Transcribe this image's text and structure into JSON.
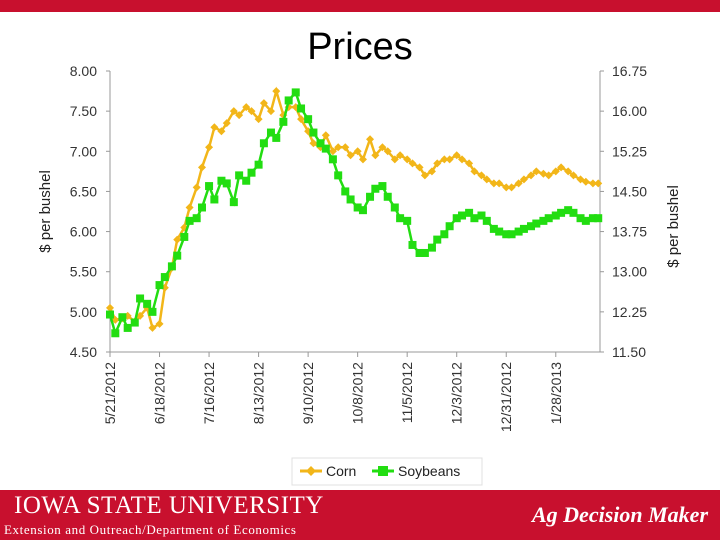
{
  "header": {
    "title": "Prices"
  },
  "footer": {
    "university": "Iowa State University",
    "subtitle": "Extension and Outreach/Department of Economics",
    "brand": "Ag Decision Maker"
  },
  "colors": {
    "corn": "#f2b619",
    "soybeans": "#22dd11",
    "brand_red": "#c8102e"
  },
  "chart_data": {
    "type": "line",
    "title": "Prices",
    "ylabel": "$ per bushel",
    "y2label": "$ per bushel",
    "ylim": [
      4.5,
      8.0
    ],
    "y2lim": [
      11.5,
      16.75
    ],
    "yticks": [
      "4.50",
      "5.00",
      "5.50",
      "6.00",
      "6.50",
      "7.00",
      "7.50",
      "8.00"
    ],
    "y2ticks": [
      "11.50",
      "12.25",
      "13.00",
      "13.75",
      "14.50",
      "15.25",
      "16.00",
      "16.75"
    ],
    "xlim": [
      "2012-05-21",
      "2013-02-22"
    ],
    "xticks": [
      "5/21/2012",
      "6/18/2012",
      "7/16/2012",
      "8/13/2012",
      "9/10/2012",
      "10/8/2012",
      "11/5/2012",
      "12/3/2012",
      "12/31/2012",
      "1/28/2013"
    ],
    "grid": false,
    "legend": "bottom",
    "series": [
      {
        "name": "Corn",
        "axis": "left",
        "x": [
          "2012-05-21",
          "2012-05-24",
          "2012-05-28",
          "2012-05-31",
          "2012-06-04",
          "2012-06-07",
          "2012-06-11",
          "2012-06-14",
          "2012-06-18",
          "2012-06-21",
          "2012-06-25",
          "2012-06-28",
          "2012-07-02",
          "2012-07-05",
          "2012-07-09",
          "2012-07-12",
          "2012-07-16",
          "2012-07-19",
          "2012-07-23",
          "2012-07-26",
          "2012-07-30",
          "2012-08-02",
          "2012-08-06",
          "2012-08-09",
          "2012-08-13",
          "2012-08-16",
          "2012-08-20",
          "2012-08-23",
          "2012-08-27",
          "2012-08-30",
          "2012-09-03",
          "2012-09-06",
          "2012-09-10",
          "2012-09-13",
          "2012-09-17",
          "2012-09-20",
          "2012-09-24",
          "2012-09-27",
          "2012-10-01",
          "2012-10-04",
          "2012-10-08",
          "2012-10-11",
          "2012-10-15",
          "2012-10-18",
          "2012-10-22",
          "2012-10-25",
          "2012-10-29",
          "2012-11-01",
          "2012-11-05",
          "2012-11-08",
          "2012-11-12",
          "2012-11-15",
          "2012-11-19",
          "2012-11-22",
          "2012-11-26",
          "2012-11-29",
          "2012-12-03",
          "2012-12-06",
          "2012-12-10",
          "2012-12-13",
          "2012-12-17",
          "2012-12-20",
          "2012-12-24",
          "2012-12-27",
          "2012-12-31",
          "2013-01-03",
          "2013-01-07",
          "2013-01-10",
          "2013-01-14",
          "2013-01-17",
          "2013-01-21",
          "2013-01-24",
          "2013-01-28",
          "2013-01-31",
          "2013-02-04",
          "2013-02-07",
          "2013-02-11",
          "2013-02-14",
          "2013-02-18",
          "2013-02-21"
        ],
        "values": [
          5.05,
          4.9,
          4.92,
          4.95,
          4.88,
          4.95,
          5.05,
          4.8,
          4.85,
          5.3,
          5.55,
          5.9,
          6.05,
          6.3,
          6.55,
          6.8,
          7.05,
          7.3,
          7.25,
          7.35,
          7.5,
          7.45,
          7.55,
          7.5,
          7.4,
          7.6,
          7.5,
          7.75,
          7.45,
          7.55,
          7.55,
          7.4,
          7.25,
          7.1,
          7.05,
          7.2,
          7.0,
          7.05,
          7.05,
          6.95,
          7.0,
          6.9,
          7.15,
          6.95,
          7.05,
          7.0,
          6.9,
          6.95,
          6.9,
          6.85,
          6.8,
          6.7,
          6.75,
          6.85,
          6.9,
          6.9,
          6.95,
          6.9,
          6.85,
          6.75,
          6.7,
          6.65,
          6.6,
          6.6,
          6.55,
          6.55,
          6.6,
          6.65,
          6.7,
          6.75,
          6.72,
          6.7,
          6.75,
          6.8,
          6.75,
          6.7,
          6.65,
          6.62,
          6.6,
          6.6
        ]
      },
      {
        "name": "Soybeans",
        "axis": "right",
        "x": [
          "2012-05-21",
          "2012-05-24",
          "2012-05-28",
          "2012-05-31",
          "2012-06-04",
          "2012-06-07",
          "2012-06-11",
          "2012-06-14",
          "2012-06-18",
          "2012-06-21",
          "2012-06-25",
          "2012-06-28",
          "2012-07-02",
          "2012-07-05",
          "2012-07-09",
          "2012-07-12",
          "2012-07-16",
          "2012-07-19",
          "2012-07-23",
          "2012-07-26",
          "2012-07-30",
          "2012-08-02",
          "2012-08-06",
          "2012-08-09",
          "2012-08-13",
          "2012-08-16",
          "2012-08-20",
          "2012-08-23",
          "2012-08-27",
          "2012-08-30",
          "2012-09-03",
          "2012-09-06",
          "2012-09-10",
          "2012-09-13",
          "2012-09-17",
          "2012-09-20",
          "2012-09-24",
          "2012-09-27",
          "2012-10-01",
          "2012-10-04",
          "2012-10-08",
          "2012-10-11",
          "2012-10-15",
          "2012-10-18",
          "2012-10-22",
          "2012-10-25",
          "2012-10-29",
          "2012-11-01",
          "2012-11-05",
          "2012-11-08",
          "2012-11-12",
          "2012-11-15",
          "2012-11-19",
          "2012-11-22",
          "2012-11-26",
          "2012-11-29",
          "2012-12-03",
          "2012-12-06",
          "2012-12-10",
          "2012-12-13",
          "2012-12-17",
          "2012-12-20",
          "2012-12-24",
          "2012-12-27",
          "2012-12-31",
          "2013-01-03",
          "2013-01-07",
          "2013-01-10",
          "2013-01-14",
          "2013-01-17",
          "2013-01-21",
          "2013-01-24",
          "2013-01-28",
          "2013-01-31",
          "2013-02-04",
          "2013-02-07",
          "2013-02-11",
          "2013-02-14",
          "2013-02-18",
          "2013-02-21"
        ],
        "values": [
          12.2,
          11.85,
          12.15,
          11.95,
          12.05,
          12.5,
          12.4,
          12.25,
          12.75,
          12.9,
          13.1,
          13.3,
          13.65,
          13.95,
          14.0,
          14.2,
          14.6,
          14.35,
          14.7,
          14.65,
          14.3,
          14.8,
          14.7,
          14.85,
          15.0,
          15.4,
          15.6,
          15.5,
          15.8,
          16.2,
          16.35,
          16.05,
          15.85,
          15.6,
          15.4,
          15.3,
          15.1,
          14.8,
          14.5,
          14.35,
          14.2,
          14.15,
          14.4,
          14.55,
          14.6,
          14.4,
          14.2,
          14.0,
          13.95,
          13.5,
          13.35,
          13.35,
          13.45,
          13.6,
          13.7,
          13.85,
          14.0,
          14.05,
          14.1,
          14.0,
          14.05,
          13.95,
          13.8,
          13.75,
          13.7,
          13.7,
          13.75,
          13.8,
          13.85,
          13.9,
          13.95,
          14.0,
          14.05,
          14.1,
          14.15,
          14.1,
          14.0,
          13.95,
          14.0,
          14.0
        ]
      }
    ]
  }
}
